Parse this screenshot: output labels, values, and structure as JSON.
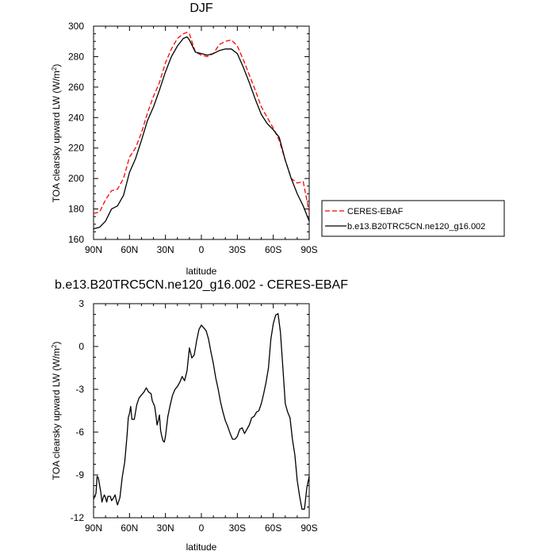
{
  "chart_data": [
    {
      "type": "line",
      "title": "DJF",
      "xlabel": "latitude",
      "ylabel": "TOA clearsky upward LW (W/m",
      "ylabel_sup": "2",
      "ylabel_tail": ")",
      "xlim": [
        -90,
        90
      ],
      "ylim": [
        160,
        300
      ],
      "xticks": [
        -90,
        -60,
        -30,
        0,
        30,
        60,
        90
      ],
      "xtick_labels": [
        "90N",
        "60N",
        "30N",
        "0",
        "30S",
        "60S",
        "90S"
      ],
      "yticks": [
        160,
        180,
        200,
        220,
        240,
        260,
        280,
        300
      ],
      "ytick_labels": [
        "160",
        "180",
        "200",
        "220",
        "240",
        "260",
        "280",
        "300"
      ],
      "legend_position": "right",
      "series": [
        {
          "name": "CERES-EBAF",
          "color": "#ff0000",
          "dash": "dashed",
          "x": [
            -90,
            -85,
            -80,
            -75,
            -70,
            -65,
            -60,
            -55,
            -50,
            -45,
            -40,
            -35,
            -30,
            -25,
            -20,
            -15,
            -12,
            -10,
            -5,
            0,
            5,
            10,
            15,
            20,
            25,
            30,
            35,
            40,
            45,
            50,
            55,
            60,
            65,
            70,
            75,
            80,
            85,
            90
          ],
          "y": [
            177,
            178,
            186,
            192,
            193,
            200,
            214,
            220,
            230,
            243,
            254,
            263,
            276,
            285,
            292,
            295,
            296,
            295,
            283,
            281,
            280,
            282,
            288,
            290,
            291,
            287,
            278,
            268,
            258,
            247,
            240,
            233,
            225,
            212,
            200,
            197,
            198,
            178
          ]
        },
        {
          "name": "b.e13.B20TRC5CN.ne120_g16.002",
          "color": "#000000",
          "dash": "solid",
          "x": [
            -90,
            -85,
            -80,
            -75,
            -70,
            -65,
            -60,
            -55,
            -50,
            -45,
            -40,
            -35,
            -30,
            -25,
            -20,
            -15,
            -12,
            -10,
            -5,
            0,
            5,
            10,
            15,
            20,
            25,
            30,
            35,
            40,
            45,
            50,
            55,
            60,
            65,
            70,
            75,
            80,
            85,
            90
          ],
          "y": [
            167,
            168,
            172,
            180,
            182,
            189,
            204,
            213,
            225,
            238,
            247,
            258,
            270,
            280,
            287,
            292,
            293,
            291,
            283,
            282,
            281,
            282,
            284,
            285,
            285,
            282,
            273,
            263,
            252,
            242,
            236,
            232,
            227,
            212,
            200,
            190,
            182,
            172
          ]
        }
      ]
    },
    {
      "type": "line",
      "title": "b.e13.B20TRC5CN.ne120_g16.002 - CERES-EBAF",
      "xlabel": "latitude",
      "ylabel": "TOA clearsky upward LW (W/m",
      "ylabel_sup": "2",
      "ylabel_tail": ")",
      "xlim": [
        -90,
        90
      ],
      "ylim": [
        -12,
        3
      ],
      "xticks": [
        -90,
        -60,
        -30,
        0,
        30,
        60,
        90
      ],
      "xtick_labels": [
        "90N",
        "60N",
        "30N",
        "0",
        "30S",
        "60S",
        "90S"
      ],
      "yticks": [
        -12,
        -9,
        -6,
        -3,
        0,
        3
      ],
      "ytick_labels": [
        "-12",
        "-9",
        "-6",
        "-3",
        "0",
        "3"
      ],
      "series": [
        {
          "name": "",
          "color": "#000000",
          "dash": "solid",
          "x": [
            -90,
            -88,
            -87,
            -86,
            -84,
            -83,
            -82,
            -81,
            -80,
            -79,
            -78,
            -76,
            -75,
            -74,
            -72,
            -71,
            -70,
            -68,
            -66,
            -64,
            -62,
            -61,
            -60,
            -59,
            -58,
            -56,
            -54,
            -52,
            -50,
            -48,
            -46,
            -44,
            -42,
            -41,
            -40,
            -39,
            -38,
            -37,
            -36,
            -35,
            -34,
            -33,
            -32,
            -31,
            -30,
            -28,
            -26,
            -24,
            -22,
            -20,
            -18,
            -16,
            -14,
            -12,
            -10,
            -8,
            -6,
            -4,
            -2,
            0,
            2,
            4,
            6,
            8,
            10,
            12,
            14,
            16,
            18,
            20,
            22,
            24,
            26,
            28,
            30,
            32,
            34,
            36,
            38,
            40,
            42,
            44,
            46,
            48,
            50,
            52,
            54,
            56,
            58,
            60,
            62,
            64,
            66,
            68,
            70,
            72,
            74,
            76,
            78,
            80,
            82,
            84,
            86,
            88,
            90
          ],
          "y": [
            -10.7,
            -10.3,
            -9.1,
            -9.2,
            -10.2,
            -10.9,
            -10.6,
            -10.4,
            -10.6,
            -10.9,
            -10.5,
            -10.5,
            -10.8,
            -10.7,
            -10.4,
            -10.8,
            -11.1,
            -10.6,
            -9.1,
            -8.1,
            -6.2,
            -5.0,
            -4.7,
            -4.2,
            -5.1,
            -5.1,
            -4.1,
            -3.6,
            -3.4,
            -3.2,
            -2.9,
            -3.2,
            -3.3,
            -3.8,
            -4.0,
            -4.2,
            -4.8,
            -5.5,
            -5.2,
            -4.8,
            -5.9,
            -6.3,
            -6.6,
            -6.7,
            -6.3,
            -4.9,
            -4.1,
            -3.4,
            -3.0,
            -2.8,
            -2.5,
            -2.1,
            -2.4,
            -1.7,
            -0.1,
            -0.8,
            -0.6,
            0.4,
            1.2,
            1.5,
            1.3,
            1.1,
            0.5,
            -0.4,
            -1.2,
            -2.2,
            -3.0,
            -3.9,
            -4.6,
            -5.2,
            -5.6,
            -6.1,
            -6.5,
            -6.5,
            -6.3,
            -5.8,
            -5.7,
            -6.1,
            -5.8,
            -5.5,
            -5.0,
            -4.9,
            -4.6,
            -4.5,
            -4.0,
            -3.3,
            -2.5,
            -1.5,
            0.5,
            1.6,
            2.2,
            2.3,
            1.0,
            -1.5,
            -4.0,
            -4.6,
            -5.0,
            -6.5,
            -7.6,
            -9.4,
            -10.5,
            -11.4,
            -11.4,
            -9.9,
            -9.1
          ]
        }
      ]
    }
  ]
}
